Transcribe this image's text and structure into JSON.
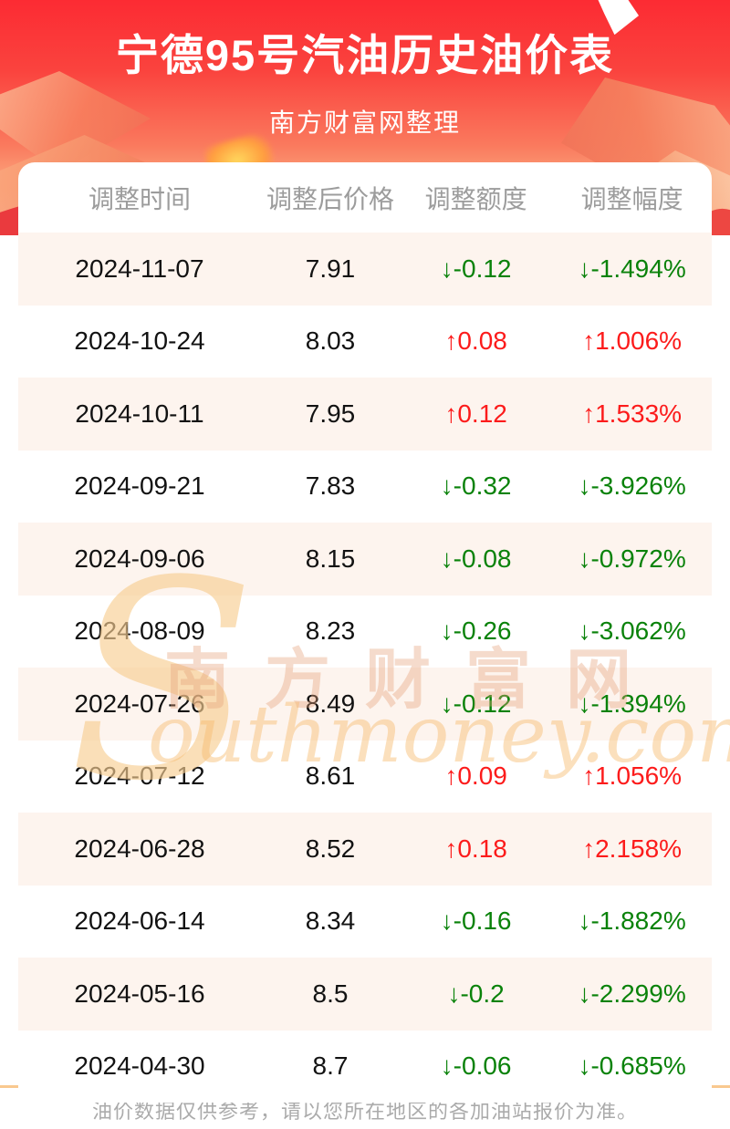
{
  "header": {
    "title": "宁德95号汽油历史油价表",
    "subtitle": "南方财富网整理"
  },
  "watermark": {
    "initial": "S",
    "script": "outhmoney.com",
    "cn": "南方财富网"
  },
  "footer": {
    "note": "油价数据仅供参考，请以您所在地区的各加油站报价为准。"
  },
  "colors": {
    "banner_red_top": "#fc2b33",
    "banner_peach_bottom": "#fcab80",
    "row_stripe": "#fdf4ee",
    "up_red": "#fc1b1b",
    "down_green": "#0a820a",
    "column_header_gray": "#9c9c9c",
    "footer_gray": "#ababab",
    "divider_orange": "#f9c88f"
  },
  "icons": {
    "up_arrow": "↑",
    "down_arrow": "↓",
    "decor_left": "gold-ingot-3d",
    "decor_right": "gold-arrow-3d",
    "decor_coin": "gold-coin-blur"
  },
  "chart_data": {
    "type": "table",
    "title": "宁德95号汽油历史油价表",
    "subtitle": "南方财富网整理",
    "columns": [
      "调整时间",
      "调整后价格",
      "调整额度",
      "调整幅度"
    ],
    "rows": [
      {
        "date": "2024-11-07",
        "price": "7.91",
        "change": "↓-0.12",
        "pct": "↓-1.494%",
        "trend": "down"
      },
      {
        "date": "2024-10-24",
        "price": "8.03",
        "change": "↑0.08",
        "pct": "↑1.006%",
        "trend": "up"
      },
      {
        "date": "2024-10-11",
        "price": "7.95",
        "change": "↑0.12",
        "pct": "↑1.533%",
        "trend": "up"
      },
      {
        "date": "2024-09-21",
        "price": "7.83",
        "change": "↓-0.32",
        "pct": "↓-3.926%",
        "trend": "down"
      },
      {
        "date": "2024-09-06",
        "price": "8.15",
        "change": "↓-0.08",
        "pct": "↓-0.972%",
        "trend": "down"
      },
      {
        "date": "2024-08-09",
        "price": "8.23",
        "change": "↓-0.26",
        "pct": "↓-3.062%",
        "trend": "down"
      },
      {
        "date": "2024-07-26",
        "price": "8.49",
        "change": "↓-0.12",
        "pct": "↓-1.394%",
        "trend": "down"
      },
      {
        "date": "2024-07-12",
        "price": "8.61",
        "change": "↑0.09",
        "pct": "↑1.056%",
        "trend": "up"
      },
      {
        "date": "2024-06-28",
        "price": "8.52",
        "change": "↑0.18",
        "pct": "↑2.158%",
        "trend": "up"
      },
      {
        "date": "2024-06-14",
        "price": "8.34",
        "change": "↓-0.16",
        "pct": "↓-1.882%",
        "trend": "down"
      },
      {
        "date": "2024-05-16",
        "price": "8.5",
        "change": "↓-0.2",
        "pct": "↓-2.299%",
        "trend": "down"
      },
      {
        "date": "2024-04-30",
        "price": "8.7",
        "change": "↓-0.06",
        "pct": "↓-0.685%",
        "trend": "down"
      }
    ]
  }
}
